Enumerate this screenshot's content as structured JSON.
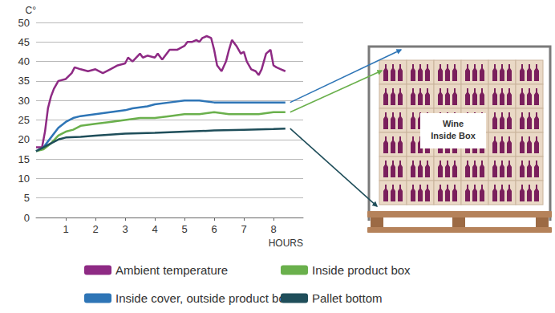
{
  "chart_data": {
    "type": "line",
    "x_label": "HOURS",
    "y_label": "C°",
    "xlim": [
      0,
      9
    ],
    "xticks": [
      1,
      2,
      3,
      4,
      5,
      6,
      7,
      8
    ],
    "ylim": [
      0,
      50
    ],
    "yticks": [
      0,
      5,
      10,
      15,
      20,
      25,
      30,
      35,
      40,
      45,
      50
    ],
    "grid": true,
    "legend": "bottom",
    "series": [
      {
        "name": "Ambient temperature",
        "color": "#8e2a84",
        "x": [
          0,
          0.2,
          0.3,
          0.4,
          0.5,
          0.6,
          0.75,
          1.0,
          1.2,
          1.3,
          1.5,
          1.75,
          2.0,
          2.25,
          2.5,
          2.75,
          3.0,
          3.1,
          3.25,
          3.5,
          3.6,
          3.75,
          4.0,
          4.1,
          4.25,
          4.5,
          4.75,
          5.0,
          5.1,
          5.25,
          5.4,
          5.5,
          5.6,
          5.75,
          5.9,
          6.0,
          6.1,
          6.25,
          6.4,
          6.5,
          6.6,
          6.75,
          6.9,
          7.0,
          7.1,
          7.25,
          7.4,
          7.5,
          7.6,
          7.75,
          7.9,
          8.0,
          8.1,
          8.25,
          8.4
        ],
        "values": [
          18,
          18,
          22,
          28,
          31,
          33,
          35,
          35.5,
          37,
          38.5,
          38,
          37.5,
          38,
          37,
          38,
          39,
          39.5,
          41,
          40,
          42,
          41,
          41.5,
          41,
          42,
          40.5,
          43,
          43,
          44,
          45,
          45,
          45.5,
          45,
          46,
          46.5,
          46,
          43,
          39,
          37.5,
          40,
          43,
          45.5,
          44,
          42,
          42.5,
          40,
          38,
          37.5,
          36.5,
          38,
          42,
          43,
          39,
          38.5,
          38,
          37.5
        ]
      },
      {
        "name": "Inside cover, outside product box",
        "color": "#2e75b6",
        "x": [
          0,
          0.25,
          0.5,
          0.75,
          1,
          1.25,
          1.5,
          2,
          2.5,
          3,
          3.25,
          3.75,
          4,
          4.5,
          5,
          5.5,
          6,
          6.5,
          7,
          7.5,
          8,
          8.4
        ],
        "values": [
          17,
          18,
          20.5,
          23,
          24.5,
          25.5,
          26,
          26.5,
          27,
          27.5,
          28,
          28.5,
          29,
          29.5,
          30,
          30,
          29.5,
          29.5,
          29.5,
          29.5,
          29.5,
          29.5
        ]
      },
      {
        "name": "Inside product box",
        "color": "#6ab04c",
        "x": [
          0,
          0.25,
          0.5,
          0.75,
          1,
          1.25,
          1.5,
          2,
          2.5,
          3,
          3.5,
          4,
          4.5,
          5,
          5.5,
          6,
          6.5,
          7,
          7.5,
          8,
          8.4
        ],
        "values": [
          17,
          17.5,
          19,
          21,
          22,
          22.5,
          23.5,
          24,
          24.5,
          25,
          25.5,
          25.5,
          26,
          26.5,
          26.5,
          27,
          26.5,
          26.5,
          26.5,
          27,
          27
        ]
      },
      {
        "name": "Pallet bottom",
        "color": "#1f4e5a",
        "x": [
          0,
          0.25,
          0.5,
          0.75,
          1,
          1.5,
          2,
          3,
          4,
          5,
          6,
          7,
          8,
          8.4
        ],
        "values": [
          17,
          18,
          19,
          20,
          20.5,
          20.7,
          21,
          21.5,
          21.7,
          22,
          22.3,
          22.5,
          22.7,
          22.8
        ]
      }
    ]
  },
  "diagram": {
    "label": [
      "Wine",
      "Inside Box"
    ]
  }
}
